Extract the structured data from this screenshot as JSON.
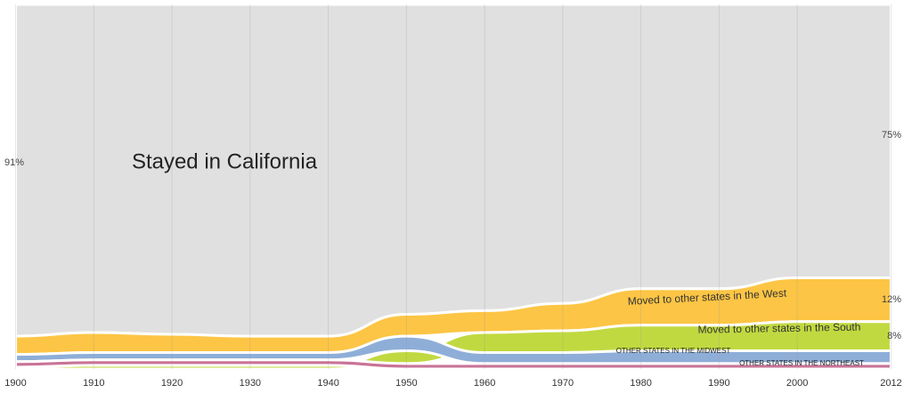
{
  "chart_data": {
    "type": "stream",
    "x": [
      1900,
      1910,
      1920,
      1930,
      1940,
      1950,
      1960,
      1970,
      1980,
      1990,
      2000,
      2012
    ],
    "xlim": [
      1898,
      2014
    ],
    "xticks": [
      1900,
      1910,
      1920,
      1930,
      1940,
      1950,
      1960,
      1970,
      1980,
      1990,
      2000,
      2012
    ],
    "ylim": [
      0,
      100
    ],
    "grid": true,
    "series": [
      {
        "name": "Stayed in California",
        "color": "#e0e0e0",
        "values": [
          91,
          90,
          90.5,
          91,
          91,
          85,
          84,
          82,
          78,
          78,
          75,
          75
        ],
        "value_labels": [
          "91%",
          null,
          null,
          null,
          null,
          null,
          null,
          null,
          null,
          null,
          null,
          "75%"
        ]
      },
      {
        "name": "Moved to other states in the West",
        "color": "#fcc545",
        "values": [
          5,
          5.5,
          5,
          4.5,
          4.5,
          6,
          6,
          7.5,
          10,
          10,
          12,
          12
        ],
        "value_labels": [
          null,
          null,
          null,
          null,
          null,
          null,
          null,
          null,
          null,
          null,
          null,
          "12%"
        ]
      },
      {
        "name": "Moved to other states in the South",
        "color": "#c1d940",
        "values": [
          0.5,
          1,
          1,
          1,
          1,
          3.5,
          5.5,
          6,
          7,
          7,
          8,
          8
        ],
        "value_labels": [
          null,
          null,
          null,
          null,
          null,
          null,
          null,
          null,
          null,
          null,
          null,
          "8%"
        ]
      },
      {
        "name": "OTHER STATES IN THE MIDWEST",
        "color": "#8eaed8",
        "values": [
          2,
          2,
          2,
          2,
          2,
          4,
          3,
          3,
          3.5,
          3.5,
          3.5,
          3.5
        ]
      },
      {
        "name": "OTHER STATES IN THE NORTHEAST",
        "color": "#c97397",
        "values": [
          1.5,
          1.5,
          1.5,
          1.5,
          1.5,
          1.5,
          1.5,
          1.5,
          1.5,
          1.5,
          1.5,
          1.5
        ]
      }
    ]
  }
}
